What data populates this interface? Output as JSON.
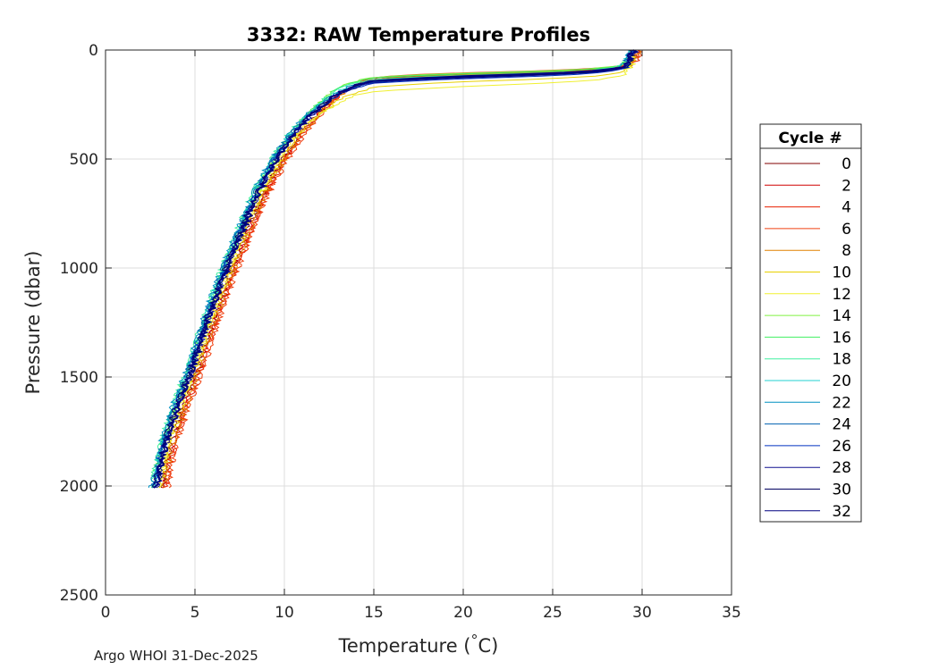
{
  "chart_data": {
    "type": "line",
    "title": "3332: RAW Temperature Profiles",
    "xlabel_main": "Temperature (",
    "xlabel_degree": "°",
    "xlabel_unit": "C)",
    "ylabel": "Pressure (dbar)",
    "xlim": [
      0,
      35
    ],
    "ylim": [
      0,
      2500
    ],
    "y_reversed": true,
    "xticks": [
      0,
      5,
      10,
      15,
      20,
      25,
      30,
      35
    ],
    "yticks": [
      0,
      500,
      1000,
      1500,
      2000,
      2500
    ],
    "grid": true,
    "legend_title": "Cycle #",
    "legend_position": "right",
    "legend_entries": [
      "0",
      "2",
      "4",
      "6",
      "8",
      "10",
      "12",
      "14",
      "16",
      "18",
      "20",
      "22",
      "24",
      "26",
      "28",
      "30",
      "32"
    ],
    "legend_colors": [
      "#800000",
      "#d00000",
      "#e82000",
      "#f04010",
      "#e08000",
      "#e8d000",
      "#f0f030",
      "#80f040",
      "#40f060",
      "#40f0a0",
      "#20d0d0",
      "#0090c0",
      "#0060b0",
      "#0030c0",
      "#101090",
      "#000060",
      "#000080"
    ],
    "mean_profile": {
      "pressure": [
        0,
        50,
        80,
        100,
        110,
        120,
        130,
        140,
        160,
        180,
        200,
        250,
        300,
        400,
        500,
        600,
        700,
        800,
        900,
        1000,
        1200,
        1400,
        1500,
        1600,
        1700,
        1800,
        1900,
        2000,
        2010
      ],
      "temperature": [
        29.5,
        29.3,
        29.0,
        27.0,
        24.0,
        20.0,
        17.0,
        15.0,
        14.0,
        13.5,
        13.0,
        12.2,
        11.5,
        10.4,
        9.6,
        8.9,
        8.3,
        7.8,
        7.3,
        6.8,
        5.9,
        5.1,
        4.7,
        4.2,
        3.8,
        3.4,
        3.1,
        2.9,
        2.8
      ]
    },
    "series": [
      {
        "name": "0",
        "color": "#800000",
        "temp_offset": 0.3,
        "thermocline_offset": -10
      },
      {
        "name": "2",
        "color": "#d00000",
        "temp_offset": 0.4,
        "thermocline_offset": -15
      },
      {
        "name": "4",
        "color": "#e82000",
        "temp_offset": 0.5,
        "thermocline_offset": -20
      },
      {
        "name": "6",
        "color": "#f04010",
        "temp_offset": 0.6,
        "thermocline_offset": -25
      },
      {
        "name": "8",
        "color": "#e08000",
        "temp_offset": 0.4,
        "thermocline_offset": -10
      },
      {
        "name": "10",
        "color": "#e8d000",
        "temp_offset": 0.2,
        "thermocline_offset": 30
      },
      {
        "name": "12",
        "color": "#f0f030",
        "temp_offset": 0.1,
        "thermocline_offset": 50
      },
      {
        "name": "14",
        "color": "#80f040",
        "temp_offset": -0.1,
        "thermocline_offset": -20
      },
      {
        "name": "16",
        "color": "#40f060",
        "temp_offset": -0.2,
        "thermocline_offset": -15
      },
      {
        "name": "18",
        "color": "#40f0a0",
        "temp_offset": -0.3,
        "thermocline_offset": -5
      },
      {
        "name": "20",
        "color": "#20d0d0",
        "temp_offset": -0.2,
        "thermocline_offset": 0
      },
      {
        "name": "22",
        "color": "#0090c0",
        "temp_offset": -0.3,
        "thermocline_offset": 5
      },
      {
        "name": "24",
        "color": "#0060b0",
        "temp_offset": -0.2,
        "thermocline_offset": 10
      },
      {
        "name": "26",
        "color": "#0030c0",
        "temp_offset": -0.1,
        "thermocline_offset": 15
      },
      {
        "name": "28",
        "color": "#101090",
        "temp_offset": 0.0,
        "thermocline_offset": 10
      },
      {
        "name": "30",
        "color": "#000060",
        "temp_offset": -0.1,
        "thermocline_offset": 5
      },
      {
        "name": "32",
        "color": "#000080",
        "temp_offset": 0.0,
        "thermocline_offset": 0
      }
    ]
  },
  "footer": "Argo WHOI 31-Dec-2025"
}
